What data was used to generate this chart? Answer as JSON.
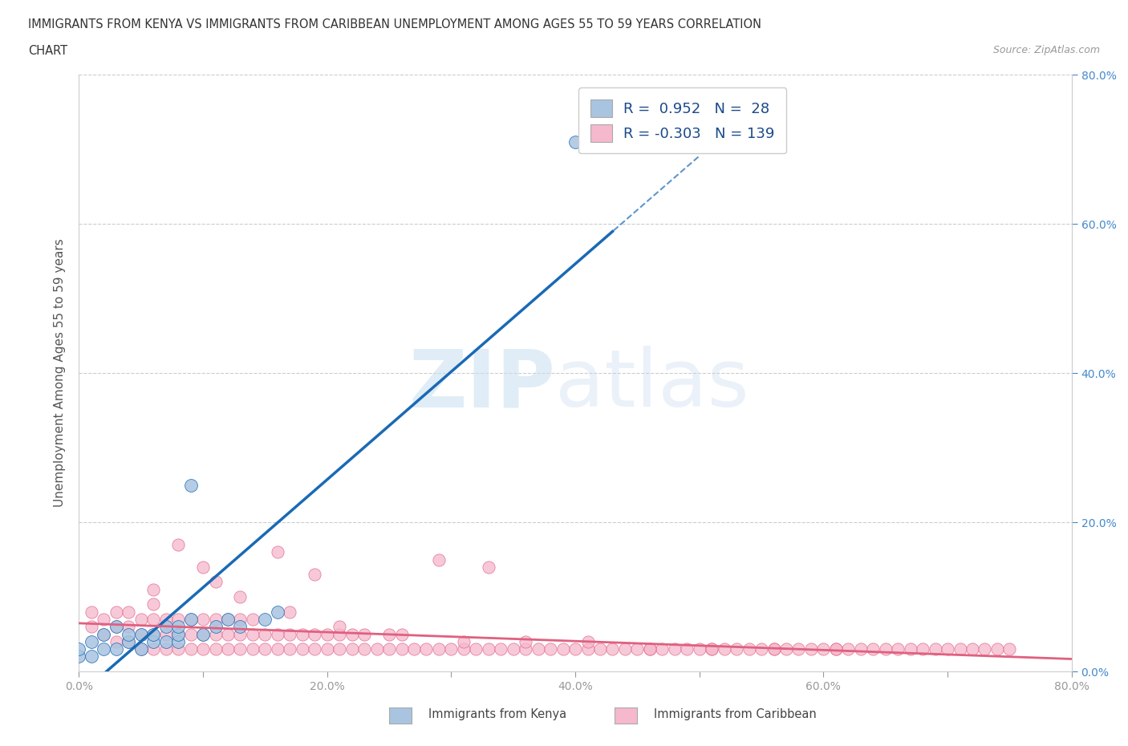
{
  "title_line1": "IMMIGRANTS FROM KENYA VS IMMIGRANTS FROM CARIBBEAN UNEMPLOYMENT AMONG AGES 55 TO 59 YEARS CORRELATION",
  "title_line2": "CHART",
  "source": "Source: ZipAtlas.com",
  "ylabel": "Unemployment Among Ages 55 to 59 years",
  "xlim": [
    0.0,
    0.8
  ],
  "ylim": [
    0.0,
    0.8
  ],
  "kenya_R": 0.952,
  "kenya_N": 28,
  "caribbean_R": -0.303,
  "caribbean_N": 139,
  "kenya_color": "#a8c4e0",
  "kenya_line_color": "#1a6ab5",
  "caribbean_color": "#f5b8cc",
  "caribbean_line_color": "#e06080",
  "grid_color": "#cccccc",
  "legend_text_color": "#1a4a8a",
  "right_tick_color": "#4488cc",
  "kenya_x": [
    0.0,
    0.0,
    0.01,
    0.01,
    0.02,
    0.02,
    0.03,
    0.03,
    0.04,
    0.04,
    0.05,
    0.05,
    0.06,
    0.06,
    0.07,
    0.07,
    0.08,
    0.08,
    0.08,
    0.09,
    0.1,
    0.11,
    0.12,
    0.13,
    0.15,
    0.16,
    0.4,
    0.09
  ],
  "kenya_y": [
    0.02,
    0.03,
    0.02,
    0.04,
    0.03,
    0.05,
    0.03,
    0.06,
    0.04,
    0.05,
    0.03,
    0.05,
    0.04,
    0.05,
    0.04,
    0.06,
    0.04,
    0.05,
    0.06,
    0.25,
    0.05,
    0.06,
    0.07,
    0.06,
    0.07,
    0.08,
    0.71,
    0.07
  ],
  "carib_x": [
    0.01,
    0.01,
    0.02,
    0.02,
    0.03,
    0.03,
    0.03,
    0.04,
    0.04,
    0.04,
    0.05,
    0.05,
    0.05,
    0.06,
    0.06,
    0.06,
    0.06,
    0.07,
    0.07,
    0.07,
    0.08,
    0.08,
    0.08,
    0.09,
    0.09,
    0.09,
    0.1,
    0.1,
    0.1,
    0.11,
    0.11,
    0.11,
    0.12,
    0.12,
    0.12,
    0.13,
    0.13,
    0.13,
    0.14,
    0.14,
    0.14,
    0.15,
    0.15,
    0.16,
    0.16,
    0.17,
    0.17,
    0.18,
    0.18,
    0.19,
    0.19,
    0.2,
    0.2,
    0.21,
    0.21,
    0.22,
    0.22,
    0.23,
    0.23,
    0.24,
    0.25,
    0.25,
    0.26,
    0.27,
    0.28,
    0.29,
    0.3,
    0.31,
    0.32,
    0.33,
    0.34,
    0.35,
    0.36,
    0.37,
    0.38,
    0.39,
    0.4,
    0.41,
    0.42,
    0.43,
    0.44,
    0.45,
    0.46,
    0.47,
    0.48,
    0.49,
    0.5,
    0.51,
    0.52,
    0.53,
    0.54,
    0.55,
    0.56,
    0.57,
    0.58,
    0.59,
    0.6,
    0.61,
    0.62,
    0.63,
    0.64,
    0.65,
    0.66,
    0.67,
    0.68,
    0.69,
    0.7,
    0.71,
    0.72,
    0.73,
    0.74,
    0.75,
    0.29,
    0.33,
    0.11,
    0.16,
    0.19,
    0.08,
    0.06,
    0.1,
    0.13,
    0.17,
    0.21,
    0.26,
    0.31,
    0.36,
    0.41,
    0.46,
    0.51,
    0.56,
    0.61
  ],
  "carib_y": [
    0.06,
    0.08,
    0.05,
    0.07,
    0.04,
    0.06,
    0.08,
    0.04,
    0.06,
    0.08,
    0.03,
    0.05,
    0.07,
    0.03,
    0.05,
    0.07,
    0.09,
    0.03,
    0.05,
    0.07,
    0.03,
    0.05,
    0.07,
    0.03,
    0.05,
    0.07,
    0.03,
    0.05,
    0.07,
    0.03,
    0.05,
    0.07,
    0.03,
    0.05,
    0.07,
    0.03,
    0.05,
    0.07,
    0.03,
    0.05,
    0.07,
    0.03,
    0.05,
    0.03,
    0.05,
    0.03,
    0.05,
    0.03,
    0.05,
    0.03,
    0.05,
    0.03,
    0.05,
    0.03,
    0.05,
    0.03,
    0.05,
    0.03,
    0.05,
    0.03,
    0.03,
    0.05,
    0.03,
    0.03,
    0.03,
    0.03,
    0.03,
    0.03,
    0.03,
    0.03,
    0.03,
    0.03,
    0.03,
    0.03,
    0.03,
    0.03,
    0.03,
    0.03,
    0.03,
    0.03,
    0.03,
    0.03,
    0.03,
    0.03,
    0.03,
    0.03,
    0.03,
    0.03,
    0.03,
    0.03,
    0.03,
    0.03,
    0.03,
    0.03,
    0.03,
    0.03,
    0.03,
    0.03,
    0.03,
    0.03,
    0.03,
    0.03,
    0.03,
    0.03,
    0.03,
    0.03,
    0.03,
    0.03,
    0.03,
    0.03,
    0.03,
    0.03,
    0.15,
    0.14,
    0.12,
    0.16,
    0.13,
    0.17,
    0.11,
    0.14,
    0.1,
    0.08,
    0.06,
    0.05,
    0.04,
    0.04,
    0.04,
    0.03,
    0.03,
    0.03,
    0.03
  ]
}
